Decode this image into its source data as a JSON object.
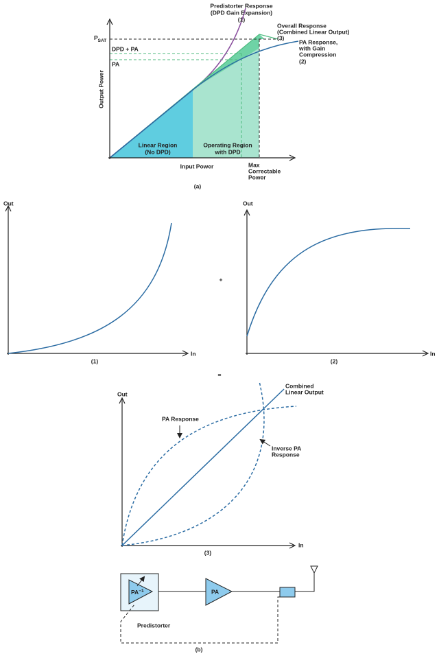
{
  "panel_a": {
    "predistorter_label": [
      "Predistorter Response",
      "(DPD Gain Expansion)",
      "(1)"
    ],
    "overall_label": [
      "Overall Response",
      "(Combined Linear Output)",
      "(3)"
    ],
    "pa_label": [
      "PA Response,",
      "with Gain",
      "Compression",
      "(2)"
    ],
    "psat": {
      "base": "P",
      "sub": "SAT"
    },
    "dpd_pa": "DPD + PA",
    "pa": "PA",
    "y_axis": "Output Power",
    "linear_region": [
      "Linear Region",
      "(No DPD)"
    ],
    "operating_region": [
      "Operating Region",
      "with DPD"
    ],
    "x_axis": "Input Power",
    "max_power": [
      "Max",
      "Correctable",
      "Power"
    ],
    "caption": "(a)"
  },
  "panel_1": {
    "y_axis": "Out",
    "x_axis": "In",
    "caption": "(1)"
  },
  "plus": "+",
  "panel_2": {
    "y_axis": "Out",
    "x_axis": "In",
    "caption": "(2)"
  },
  "equals": "=",
  "panel_3": {
    "y_axis": "Out",
    "x_axis": "In",
    "caption": "(3)",
    "combined_label": [
      "Combined",
      "Linear Output"
    ],
    "pa_response": "PA Response",
    "inverse_label": [
      "Inverse PA",
      "Response"
    ]
  },
  "panel_b": {
    "predistorter_block": {
      "base": "PA",
      "sup": "−1"
    },
    "pa_block": "PA",
    "predistorter_label": "Predistorter",
    "caption": "(b)"
  }
}
